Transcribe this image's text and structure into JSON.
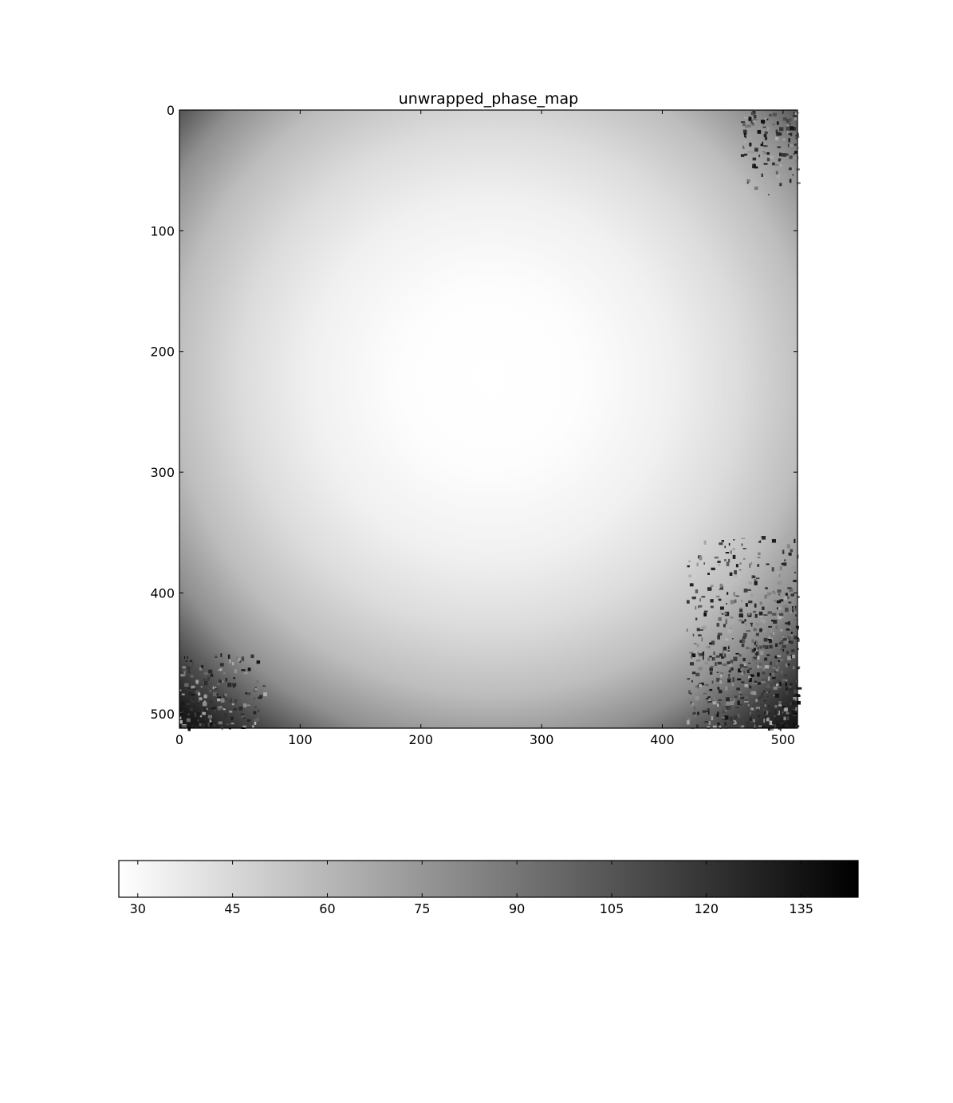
{
  "chart_data": {
    "type": "heatmap",
    "title": "unwrapped_phase_map",
    "colormap": "gray_r",
    "grid": false,
    "image_size": [
      512,
      512
    ],
    "x_axis": {
      "range": [
        0,
        512
      ],
      "ticks": [
        0,
        100,
        200,
        300,
        400,
        500
      ]
    },
    "y_axis": {
      "range": [
        512,
        0
      ],
      "inverted": true,
      "ticks": [
        0,
        100,
        200,
        300,
        400,
        500
      ]
    },
    "center": [
      258,
      222
    ],
    "center_value": 27,
    "corner_value": 135,
    "edge_distance": 375,
    "noisy_regions": [
      {
        "corner": "top-right",
        "x_range": [
          465,
          512
        ],
        "y_range": [
          0,
          70
        ]
      },
      {
        "corner": "bottom-right",
        "x_range": [
          420,
          512
        ],
        "y_range": [
          350,
          512
        ]
      },
      {
        "corner": "bottom-left",
        "x_range": [
          0,
          70
        ],
        "y_range": [
          450,
          512
        ]
      }
    ],
    "colorbar": {
      "orientation": "horizontal",
      "placement": "bottom",
      "range": [
        27,
        144
      ],
      "ticks": [
        30,
        45,
        60,
        75,
        90,
        105,
        120,
        135
      ]
    }
  }
}
